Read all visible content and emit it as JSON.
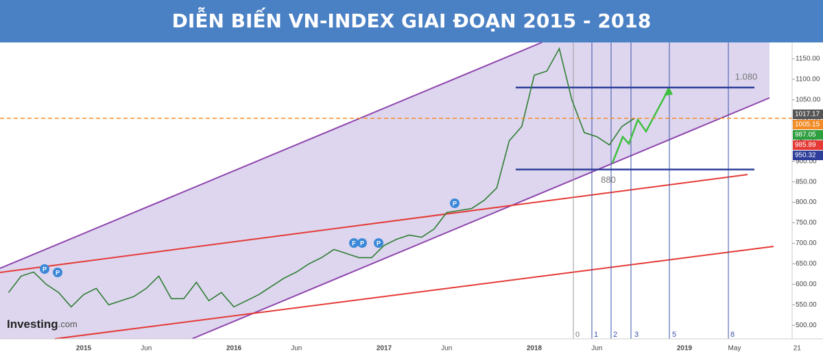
{
  "chart_data": {
    "type": "line",
    "title": "DIỄN BIẾN VN-INDEX GIAI ĐOẠN 2015 - 2018",
    "categories": [
      null,
      null,
      null,
      null,
      null,
      null,
      "2015",
      null,
      null,
      null,
      null,
      "Jun",
      null,
      null,
      null,
      null,
      null,
      null,
      "2016",
      null,
      null,
      null,
      null,
      "Jun",
      null,
      null,
      null,
      null,
      null,
      null,
      "2017",
      null,
      null,
      null,
      null,
      "Jun",
      null,
      null,
      null,
      null,
      null,
      null,
      "2018",
      null,
      null,
      null,
      null,
      "Jun",
      null,
      null,
      null,
      null,
      null,
      null,
      "2019",
      null,
      null,
      null,
      "May",
      null,
      null,
      null,
      null,
      "21"
    ],
    "values": [
      580,
      620,
      630,
      600,
      580,
      545,
      575,
      590,
      550,
      560,
      570,
      590,
      620,
      565,
      565,
      605,
      560,
      580,
      545,
      560,
      575,
      595,
      615,
      630,
      650,
      665,
      685,
      675,
      665,
      665,
      695,
      710,
      720,
      715,
      735,
      775,
      780,
      785,
      805,
      835,
      950,
      985,
      1110,
      1120,
      1175,
      1050,
      970,
      960,
      940,
      985,
      1005,
      null,
      null,
      null,
      null,
      null,
      null,
      null,
      null,
      null,
      null,
      null,
      null,
      null
    ],
    "color": "#2e7d32",
    "ylim": [
      467,
      1190
    ],
    "yticks": [
      {
        "value": 500,
        "label": "500.00"
      },
      {
        "value": 550,
        "label": "550.00"
      },
      {
        "value": 600,
        "label": "600.00"
      },
      {
        "value": 650,
        "label": "650.00"
      },
      {
        "value": 700,
        "label": "700.00"
      },
      {
        "value": 750,
        "label": "750.00"
      },
      {
        "value": 800,
        "label": "800.00"
      },
      {
        "value": 850,
        "label": "850.00"
      },
      {
        "value": 900,
        "label": "900.00"
      },
      {
        "value": 950,
        "label": "950.00"
      },
      {
        "value": 1000,
        "label": "1000.00"
      },
      {
        "value": 1050,
        "label": "1050.00"
      },
      {
        "value": 1100,
        "label": "1100.00"
      },
      {
        "value": 1150,
        "label": "1150.00"
      }
    ],
    "price_badges": [
      {
        "value": 1017.17,
        "color": "#555555"
      },
      {
        "value": 1005.15,
        "color": "#f28c28"
      },
      {
        "value": 987.05,
        "color": "#2e9e3e"
      },
      {
        "value": 985.89,
        "color": "#e53935"
      },
      {
        "value": 950.32,
        "color": "#2d3e9a"
      }
    ],
    "levels": [
      {
        "value": 1080,
        "label": "1.080"
      },
      {
        "value": 880,
        "label": "880"
      }
    ],
    "fib_labels": [
      0,
      1,
      2,
      3,
      5,
      8
    ],
    "event_markers": [
      "P",
      "P",
      "F",
      "P",
      "P",
      "P"
    ],
    "source_name": "Investing",
    "source_domain": ".com"
  }
}
